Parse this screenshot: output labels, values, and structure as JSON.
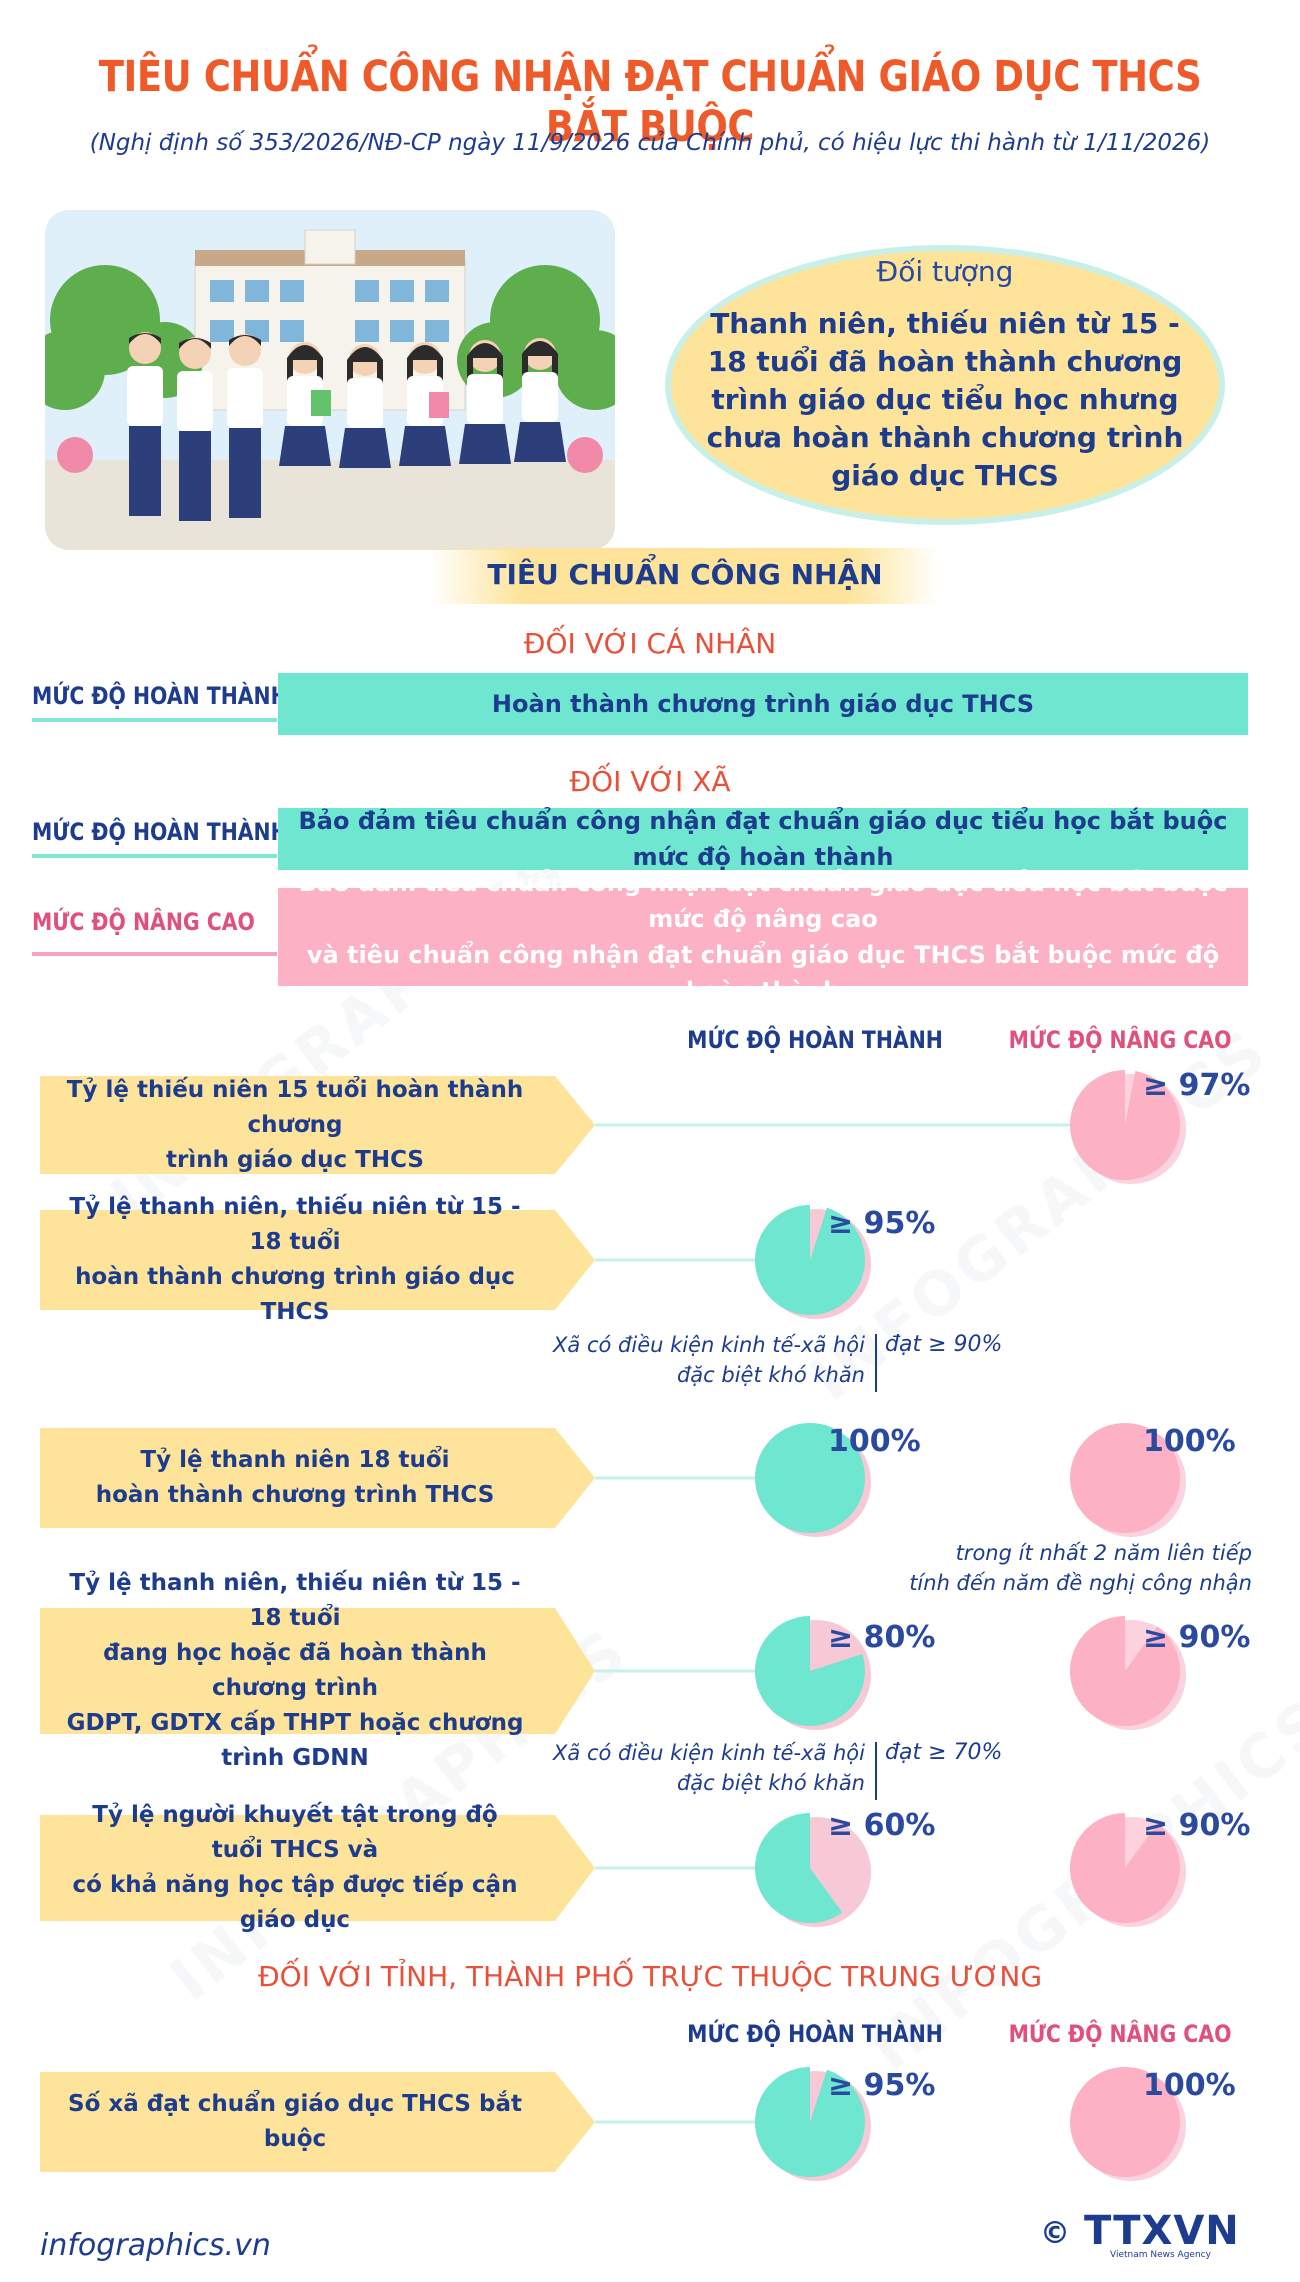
{
  "title": "TIÊU CHUẨN CÔNG NHẬN ĐẠT CHUẨN GIÁO DỤC THCS BẮT BUỘC",
  "subtitle": "(Nghị định số 353/2026/NĐ-CP ngày 11/9/2026 của Chính phủ, có  hiệu lực thi hành từ 1/11/2026)",
  "target": {
    "label": "Đối tượng",
    "desc": "Thanh niên, thiếu niên từ 15 - 18 tuổi đã hoàn thành chương trình giáo dục tiểu học nhưng chưa hoàn thành chương trình giáo dục THCS"
  },
  "criteria_heading": "TIÊU CHUẨN CÔNG NHẬN",
  "individual": {
    "heading": "ĐỐI VỚI CÁ NHÂN",
    "level_label": "MỨC ĐỘ HOÀN THÀNH",
    "text": "Hoàn thành chương trình giáo dục THCS"
  },
  "commune": {
    "heading": "ĐỐI VỚI XÃ",
    "complete_label": "MỨC ĐỘ HOÀN THÀNH",
    "complete_text": "Bảo đảm tiêu chuẩn công nhận đạt chuẩn giáo dục tiểu học bắt buộc mức độ hoàn thành",
    "advanced_label": "MỨC ĐỘ NÂNG CAO",
    "advanced_text_1": "Bảo đảm tiêu chuẩn công nhận đạt chuẩn giáo dục tiểu học bắt buộc mức độ nâng cao",
    "advanced_text_2": "và tiêu chuẩn công nhận đạt chuẩn giáo dục THCS bắt buộc mức độ hoàn thành"
  },
  "columns": {
    "complete": "MỨC ĐỘ HOÀN THÀNH",
    "advanced": "MỨC ĐỘ NÂNG CAO"
  },
  "rows": [
    {
      "label_1": "Tỷ lệ thiếu niên 15 tuổi hoàn thành chương",
      "label_2": "trình giáo dục THCS",
      "complete": null,
      "advanced": "≥ 97%",
      "advanced_value": 97
    },
    {
      "label_1": "Tỷ lệ thanh niên, thiếu niên từ 15 - 18 tuổi",
      "label_2": "hoàn thành chương trình giáo dục THCS",
      "complete": "≥ 95%",
      "complete_value": 95,
      "advanced": null
    },
    {
      "label_1": "Tỷ lệ thanh niên 18 tuổi",
      "label_2": "hoàn thành chương trình THCS",
      "complete": "100%",
      "complete_value": 100,
      "advanced": "100%",
      "advanced_value": 100
    },
    {
      "label_1": "Tỷ lệ thanh niên, thiếu niên từ 15 - 18 tuổi",
      "label_2": "đang học hoặc đã hoàn thành chương trình",
      "label_3": "GDPT, GDTX cấp THPT hoặc chương trình GDNN",
      "complete": "≥ 80%",
      "complete_value": 80,
      "advanced": "≥ 90%",
      "advanced_value": 90
    },
    {
      "label_1": "Tỷ lệ người khuyết tật trong độ tuổi THCS và",
      "label_2": "có khả năng học tập được tiếp cận giáo dục",
      "complete": "≥ 60%",
      "complete_value": 60,
      "advanced": "≥ 90%",
      "advanced_value": 90
    }
  ],
  "notes": {
    "hard_area_1": "Xã có điều kiện kinh tế-xã hội",
    "hard_area_2": "đặc biệt khó khăn",
    "row2_value": "đạt ≥ 90%",
    "row4_value": "đạt ≥ 70%",
    "row3_note_1": "trong ít nhất 2 năm liên tiếp",
    "row3_note_2": "tính đến năm đề nghị công nhận"
  },
  "province": {
    "heading": "ĐỐI VỚI TỈNH, THÀNH PHỐ TRỰC THUỘC TRUNG ƯƠNG",
    "label": "Số xã đạt chuẩn giáo dục THCS bắt buộc",
    "complete": "≥ 95%",
    "complete_value": 95,
    "advanced": "100%",
    "advanced_value": 100
  },
  "footer": "infographics.vn",
  "logo": {
    "copyright": "©",
    "name": "TTXVN",
    "tagline": "Vietnam News Agency"
  },
  "watermark": "INFOGRAPHICS",
  "colors": {
    "title": "#ee5a2a",
    "navy": "#1d3c8e",
    "mint": "#6fe6cf",
    "pink": "#fcb1c4",
    "yellow": "#fde49a"
  }
}
